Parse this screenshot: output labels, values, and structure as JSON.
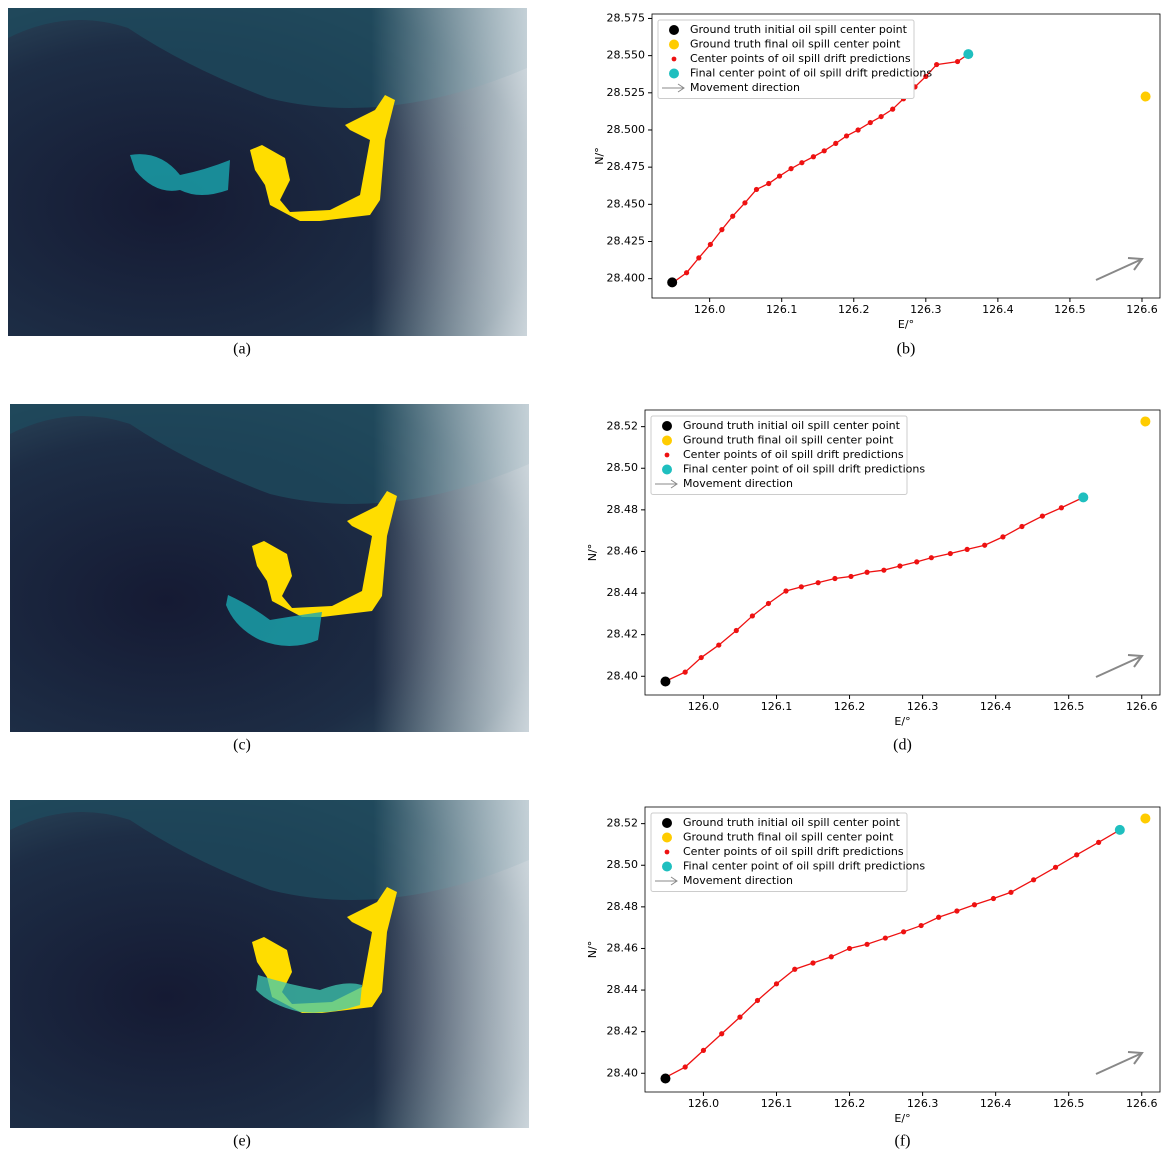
{
  "image_captions": [
    "(a)",
    "(c)",
    "(e)"
  ],
  "chart_data": [
    {
      "type": "line",
      "caption": "(b)",
      "xlabel": "E/°",
      "ylabel": "N/°",
      "legend_loc": "upper left",
      "arrow_label": "Movement direction",
      "arrow_color": "#888888",
      "xlim": [
        125.92,
        126.625
      ],
      "xticks": [
        {
          "value": 126.0,
          "label": "126.0"
        },
        126.1,
        126.2,
        126.3,
        126.4,
        126.5,
        126.6
      ],
      "ylim": [
        28.387,
        28.578
      ],
      "yticks": [
        {
          "value": 28.4,
          "label": "28.400"
        },
        28.425,
        {
          "value": 28.45,
          "label": "28.450"
        },
        28.475,
        {
          "value": 28.5,
          "label": "28.500"
        },
        28.525,
        {
          "value": 28.55,
          "label": "28.550"
        },
        28.575
      ],
      "series": [
        {
          "name": "Ground truth initial oil spill center point",
          "color": "#000000",
          "mode": "marker",
          "x": [
            125.948
          ],
          "values": [
            28.3975
          ]
        },
        {
          "name": "Ground truth final oil spill center point",
          "color": "#ffcc00",
          "mode": "marker",
          "x": [
            126.605
          ],
          "values": [
            28.5225
          ]
        },
        {
          "name": "Center points of oil spill drift predictions",
          "color": "#ee1111",
          "mode": "line",
          "x": [
            125.948,
            125.968,
            125.985,
            126.001,
            126.017,
            126.032,
            126.049,
            126.065,
            126.082,
            126.097,
            126.113,
            126.128,
            126.144,
            126.159,
            126.175,
            126.19,
            126.206,
            126.223,
            126.238,
            126.254,
            126.269,
            126.285,
            126.3,
            126.315,
            126.344,
            126.359
          ],
          "values": [
            28.397,
            28.404,
            28.414,
            28.423,
            28.433,
            28.442,
            28.451,
            28.46,
            28.464,
            28.469,
            28.474,
            28.478,
            28.482,
            28.486,
            28.491,
            28.496,
            28.5,
            28.505,
            28.509,
            28.514,
            28.521,
            28.529,
            28.536,
            28.544,
            28.546,
            28.551
          ]
        },
        {
          "name": "Final center point of oil spill drift predictions",
          "color": "#1fbfbf",
          "mode": "marker",
          "x": [
            126.359
          ],
          "values": [
            28.551
          ]
        }
      ]
    },
    {
      "type": "line",
      "caption": "(d)",
      "xlabel": "E/°",
      "ylabel": "N/°",
      "legend_loc": "upper left",
      "arrow_label": "Movement direction",
      "arrow_color": "#888888",
      "xlim": [
        125.92,
        126.625
      ],
      "xticks": [
        {
          "value": 126.0,
          "label": "126.0"
        },
        126.1,
        126.2,
        126.3,
        126.4,
        126.5,
        126.6
      ],
      "ylim": [
        28.391,
        28.528
      ],
      "yticks": [
        {
          "value": 28.4,
          "label": "28.40"
        },
        28.42,
        28.44,
        28.46,
        28.48,
        {
          "value": 28.5,
          "label": "28.50"
        },
        28.52
      ],
      "series": [
        {
          "name": "Ground truth initial oil spill center point",
          "color": "#000000",
          "mode": "marker",
          "x": [
            125.948
          ],
          "values": [
            28.3975
          ]
        },
        {
          "name": "Ground truth final oil spill center point",
          "color": "#ffcc00",
          "mode": "marker",
          "x": [
            126.605
          ],
          "values": [
            28.5225
          ]
        },
        {
          "name": "Center points of oil spill drift predictions",
          "color": "#ee1111",
          "mode": "line",
          "x": [
            125.948,
            125.975,
            125.997,
            126.021,
            126.045,
            126.067,
            126.089,
            126.113,
            126.134,
            126.157,
            126.18,
            126.202,
            126.224,
            126.247,
            126.269,
            126.292,
            126.312,
            126.338,
            126.361,
            126.385,
            126.41,
            126.436,
            126.464,
            126.49,
            126.52
          ],
          "values": [
            28.3976,
            28.402,
            28.409,
            28.415,
            28.422,
            28.429,
            28.435,
            28.441,
            28.443,
            28.445,
            28.447,
            28.448,
            28.45,
            28.451,
            28.453,
            28.455,
            28.457,
            28.459,
            28.461,
            28.463,
            28.467,
            28.472,
            28.477,
            28.481,
            28.486
          ]
        },
        {
          "name": "Final center point of oil spill drift predictions",
          "color": "#1fbfbf",
          "mode": "marker",
          "x": [
            126.52
          ],
          "values": [
            28.486
          ]
        }
      ]
    },
    {
      "type": "line",
      "caption": "(f)",
      "xlabel": "E/°",
      "ylabel": "N/°",
      "legend_loc": "upper left",
      "arrow_label": "Movement direction",
      "arrow_color": "#888888",
      "xlim": [
        125.92,
        126.625
      ],
      "xticks": [
        {
          "value": 126.0,
          "label": "126.0"
        },
        126.1,
        126.2,
        126.3,
        126.4,
        126.5,
        126.6
      ],
      "ylim": [
        28.391,
        28.528
      ],
      "yticks": [
        {
          "value": 28.4,
          "label": "28.40"
        },
        28.42,
        28.44,
        28.46,
        28.48,
        {
          "value": 28.5,
          "label": "28.50"
        },
        28.52
      ],
      "series": [
        {
          "name": "Ground truth initial oil spill center point",
          "color": "#000000",
          "mode": "marker",
          "x": [
            125.948
          ],
          "values": [
            28.3975
          ]
        },
        {
          "name": "Ground truth final oil spill center point",
          "color": "#ffcc00",
          "mode": "marker",
          "x": [
            126.605
          ],
          "values": [
            28.5225
          ]
        },
        {
          "name": "Center points of oil spill drift predictions",
          "color": "#ee1111",
          "mode": "line",
          "x": [
            125.948,
            125.975,
            126.0,
            126.025,
            126.05,
            126.074,
            126.1,
            126.125,
            126.15,
            126.175,
            126.2,
            126.224,
            126.249,
            126.274,
            126.298,
            126.322,
            126.347,
            126.371,
            126.397,
            126.421,
            126.452,
            126.482,
            126.511,
            126.541,
            126.57
          ],
          "values": [
            28.398,
            28.403,
            28.411,
            28.419,
            28.427,
            28.435,
            28.443,
            28.45,
            28.453,
            28.456,
            28.46,
            28.462,
            28.465,
            28.468,
            28.471,
            28.475,
            28.478,
            28.481,
            28.484,
            28.487,
            28.493,
            28.499,
            28.505,
            28.511,
            28.517
          ]
        },
        {
          "name": "Final center point of oil spill drift predictions",
          "color": "#1fbfbf",
          "mode": "marker",
          "x": [
            126.57
          ],
          "values": [
            28.517
          ]
        }
      ]
    }
  ]
}
